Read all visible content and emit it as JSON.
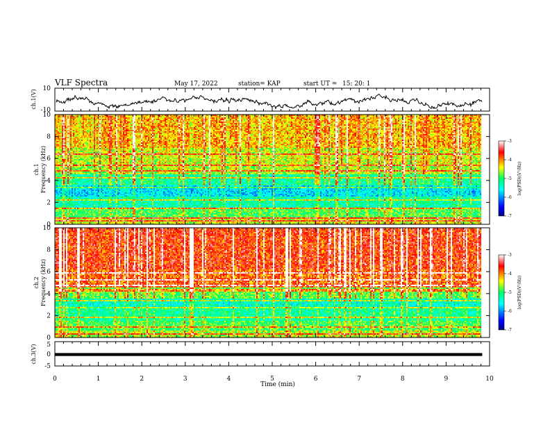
{
  "header": {
    "title": "VLF Spectra",
    "date": "May 17, 2022",
    "station": "station= KAP",
    "start_label": "start  UT  =",
    "start_time": "15: 20: 1"
  },
  "chart_data": [
    {
      "type": "line",
      "name": "ch1-waveform",
      "ylabel": "ch.1(V)",
      "ylim": [
        -10,
        10
      ],
      "yticks": [
        "10",
        "-10"
      ],
      "xlim": [
        0,
        10
      ],
      "x_extent_min": 9.83,
      "level": -1.5,
      "noise_amplitude": 5,
      "grid": false
    },
    {
      "type": "heatmap",
      "name": "ch1-spectrogram",
      "ylabel": "ch.1\nFrequency (kHz)",
      "ylim": [
        0,
        10
      ],
      "yticks": [
        "0",
        "2",
        "4",
        "6",
        "8",
        "10"
      ],
      "xlim": [
        0,
        10
      ],
      "x_extent_min": 9.83,
      "bands": [
        {
          "f": [
            0.0,
            0.6
          ],
          "value": -4.5
        },
        {
          "f": [
            0.6,
            1.5
          ],
          "value": -4.9
        },
        {
          "f": [
            1.5,
            2.5
          ],
          "value": -5.3
        },
        {
          "f": [
            2.5,
            3.6
          ],
          "value": -5.7
        },
        {
          "f": [
            3.6,
            4.5
          ],
          "value": -5.2
        },
        {
          "f": [
            4.5,
            5.5
          ],
          "value": -4.6
        },
        {
          "f": [
            5.5,
            7.0
          ],
          "value": -4.5
        },
        {
          "f": [
            7.0,
            10.0
          ],
          "value": -4.2
        }
      ],
      "lines_khz": [
        0.3,
        0.6,
        1.5,
        2.2,
        3.4,
        4.2,
        4.9,
        5.4,
        6.4
      ],
      "colorbar": {
        "label": "log(PSD)(V²/Hz)",
        "range": [
          -7,
          -3
        ],
        "ticks": [
          "-3",
          "-4",
          "-5",
          "-6",
          "-7"
        ]
      }
    },
    {
      "type": "heatmap",
      "name": "ch2-spectrogram",
      "ylabel": "ch.2\nFrequency (kHz)",
      "ylim": [
        0,
        10
      ],
      "yticks": [
        "0",
        "2",
        "4",
        "6",
        "8",
        "10"
      ],
      "xlim": [
        0,
        10
      ],
      "x_extent_min": 9.83,
      "bands": [
        {
          "f": [
            0.0,
            0.6
          ],
          "value": -4.6
        },
        {
          "f": [
            0.6,
            1.5
          ],
          "value": -4.9
        },
        {
          "f": [
            1.5,
            2.6
          ],
          "value": -5.2
        },
        {
          "f": [
            2.6,
            3.6
          ],
          "value": -5.4
        },
        {
          "f": [
            3.6,
            4.6
          ],
          "value": -4.8
        },
        {
          "f": [
            4.6,
            6.2
          ],
          "value": -3.9
        },
        {
          "f": [
            6.2,
            10.0
          ],
          "value": -3.7
        }
      ],
      "lines_khz": [
        0.3,
        1.0,
        1.8,
        2.7,
        3.3,
        4.3,
        4.8,
        5.3,
        5.9
      ],
      "colorbar": {
        "label": "log(PSD)(V²/Hz)",
        "range": [
          -7,
          -3
        ],
        "ticks": [
          "-3",
          "-4",
          "-5",
          "-6",
          "-7"
        ]
      }
    },
    {
      "type": "line",
      "name": "ch3-waveform",
      "ylabel": "ch.3(V)",
      "ylim": [
        -5,
        5
      ],
      "yticks": [
        "5",
        "0",
        "-5"
      ],
      "xlim": [
        0,
        10
      ],
      "x_extent_min": 9.83,
      "level": -0.3,
      "band_halfwidth": 0.6,
      "grid": false
    }
  ],
  "xaxis": {
    "label": "Time  (min)",
    "ticks": [
      "0",
      "1",
      "2",
      "3",
      "4",
      "5",
      "6",
      "7",
      "8",
      "9",
      "10"
    ],
    "range": [
      0,
      10
    ]
  }
}
